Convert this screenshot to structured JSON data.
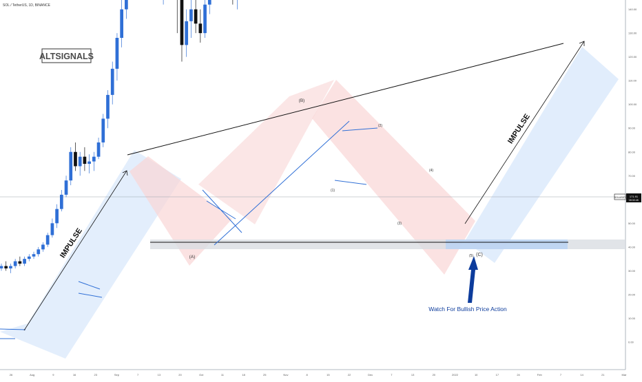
{
  "header": {
    "symbol": "SOL / TetherUS, 1D, BINANCE"
  },
  "watermark": "ALTSIGNALS",
  "labels": {
    "impulse_left": "IMPULSE",
    "impulse_right": "IMPULSE",
    "wave_A": "(A)",
    "wave_B": "(B)",
    "wave_C": "(C)",
    "w1": "(1)",
    "w2": "(2)",
    "w3": "(3)",
    "w4": "(4)",
    "w5": "(5)",
    "watch": "Watch For Bullish Price Action"
  },
  "price_tag": {
    "symbol": "SOLUSDT",
    "price": "171.91",
    "countdown": "10:31:45"
  },
  "colors": {
    "up": "#2f6fd6",
    "down": "#111111",
    "red_channel": "#f7c5c5",
    "blue_channel": "#cfe1fb",
    "arrow": "#0d3c9c"
  },
  "chart_data": {
    "type": "candlestick",
    "title": "SOL / TetherUS, 1D, BINANCE",
    "ylim": [
      -5,
      375
    ],
    "y_ticks": [
      "0.00",
      "10.00",
      "20.00",
      "30.00",
      "40.00",
      "50.00",
      "60.00",
      "70.00",
      "80.00",
      "90.00",
      "100.00",
      "110.00",
      "120.00",
      "130.00",
      "140.00",
      "150.00",
      "160.00",
      "170.00",
      "180.00",
      "190.00",
      "200.00",
      "210.00",
      "220.00",
      "230.00",
      "240.00",
      "250.00",
      "260.00",
      "270.00",
      "280.00",
      "290.00",
      "300.00",
      "310.00",
      "320.00",
      "330.00",
      "340.00",
      "350.00",
      "360.00",
      "370.00"
    ],
    "x_ticks": [
      "26",
      "Aug",
      "9",
      "16",
      "23",
      "Sep",
      "7",
      "13",
      "20",
      "Oct",
      "11",
      "18",
      "25",
      "Nov",
      "8",
      "15",
      "22",
      "Dec",
      "7",
      "13",
      "20",
      "2022",
      "10",
      "17",
      "24",
      "Feb",
      "7",
      "14",
      "21",
      "Mar"
    ],
    "current_price": 171.91,
    "support_zone": [
      117,
      126
    ],
    "candles": [
      [
        31,
        33,
        30,
        32
      ],
      [
        32,
        34,
        30,
        31
      ],
      [
        31,
        33,
        29,
        32
      ],
      [
        32,
        35,
        31,
        34
      ],
      [
        34,
        36,
        32,
        33
      ],
      [
        33,
        36,
        32,
        35
      ],
      [
        35,
        37,
        34,
        36
      ],
      [
        36,
        38,
        35,
        37
      ],
      [
        37,
        40,
        36,
        39
      ],
      [
        39,
        42,
        38,
        41
      ],
      [
        41,
        46,
        40,
        45
      ],
      [
        45,
        52,
        44,
        50
      ],
      [
        50,
        58,
        48,
        56
      ],
      [
        56,
        64,
        55,
        62
      ],
      [
        62,
        70,
        61,
        68
      ],
      [
        68,
        82,
        66,
        80
      ],
      [
        80,
        84,
        72,
        74
      ],
      [
        74,
        80,
        70,
        78
      ],
      [
        78,
        82,
        72,
        75
      ],
      [
        75,
        79,
        71,
        76
      ],
      [
        76,
        80,
        72,
        78
      ],
      [
        78,
        86,
        77,
        84
      ],
      [
        84,
        96,
        82,
        94
      ],
      [
        94,
        106,
        90,
        104
      ],
      [
        104,
        118,
        100,
        115
      ],
      [
        115,
        130,
        110,
        128
      ],
      [
        128,
        145,
        124,
        140
      ],
      [
        140,
        158,
        136,
        155
      ],
      [
        155,
        175,
        150,
        170
      ],
      [
        170,
        192,
        165,
        188
      ],
      [
        188,
        213,
        184,
        200
      ],
      [
        200,
        210,
        185,
        190
      ],
      [
        190,
        198,
        168,
        176
      ],
      [
        176,
        186,
        160,
        170
      ],
      [
        170,
        178,
        150,
        155
      ],
      [
        155,
        166,
        142,
        160
      ],
      [
        160,
        175,
        150,
        172
      ],
      [
        172,
        176,
        150,
        155
      ],
      [
        155,
        160,
        130,
        145
      ],
      [
        145,
        150,
        118,
        125
      ],
      [
        125,
        140,
        120,
        135
      ],
      [
        135,
        145,
        128,
        140
      ],
      [
        140,
        146,
        130,
        134
      ],
      [
        134,
        140,
        126,
        130
      ],
      [
        130,
        145,
        128,
        142
      ],
      [
        142,
        160,
        138,
        156
      ],
      [
        156,
        172,
        152,
        168
      ],
      [
        168,
        174,
        158,
        162
      ],
      [
        162,
        170,
        152,
        156
      ],
      [
        156,
        164,
        148,
        152
      ],
      [
        152,
        160,
        142,
        146
      ],
      [
        146,
        156,
        140,
        152
      ],
      [
        152,
        162,
        148,
        158
      ],
      [
        158,
        166,
        150,
        162
      ],
      [
        162,
        170,
        156,
        166
      ],
      [
        166,
        186,
        162,
        182
      ],
      [
        182,
        196,
        176,
        192
      ],
      [
        192,
        205,
        186,
        200
      ],
      [
        200,
        208,
        180,
        186
      ],
      [
        186,
        196,
        178,
        192
      ],
      [
        192,
        200,
        180,
        186
      ],
      [
        186,
        214,
        182,
        210
      ],
      [
        210,
        230,
        205,
        226
      ],
      [
        226,
        245,
        220,
        240
      ],
      [
        240,
        252,
        232,
        246
      ],
      [
        246,
        260,
        238,
        256
      ],
      [
        256,
        258,
        236,
        240
      ],
      [
        240,
        250,
        225,
        232
      ],
      [
        232,
        244,
        224,
        238
      ],
      [
        238,
        245,
        222,
        228
      ],
      [
        228,
        240,
        220,
        236
      ],
      [
        236,
        242,
        216,
        220
      ],
      [
        220,
        230,
        198,
        204
      ],
      [
        204,
        214,
        186,
        190
      ],
      [
        190,
        210,
        184,
        206
      ],
      [
        206,
        226,
        200,
        222
      ],
      [
        222,
        228,
        200,
        206
      ],
      [
        206,
        212,
        190,
        196
      ],
      [
        196,
        212,
        186,
        208
      ],
      [
        208,
        240,
        204,
        236
      ],
      [
        236,
        242,
        210,
        214
      ],
      [
        214,
        222,
        196,
        200
      ],
      [
        200,
        206,
        184,
        188
      ],
      [
        188,
        198,
        180,
        194
      ],
      [
        194,
        200,
        178,
        182
      ],
      [
        182,
        186,
        162,
        166
      ],
      [
        166,
        172,
        156,
        160
      ],
      [
        160,
        170,
        150,
        165
      ],
      [
        165,
        180,
        160,
        176
      ],
      [
        176,
        182,
        166,
        170
      ],
      [
        170,
        186,
        168,
        180
      ],
      [
        180,
        190,
        172,
        176
      ],
      [
        176,
        180,
        168,
        172
      ]
    ]
  }
}
